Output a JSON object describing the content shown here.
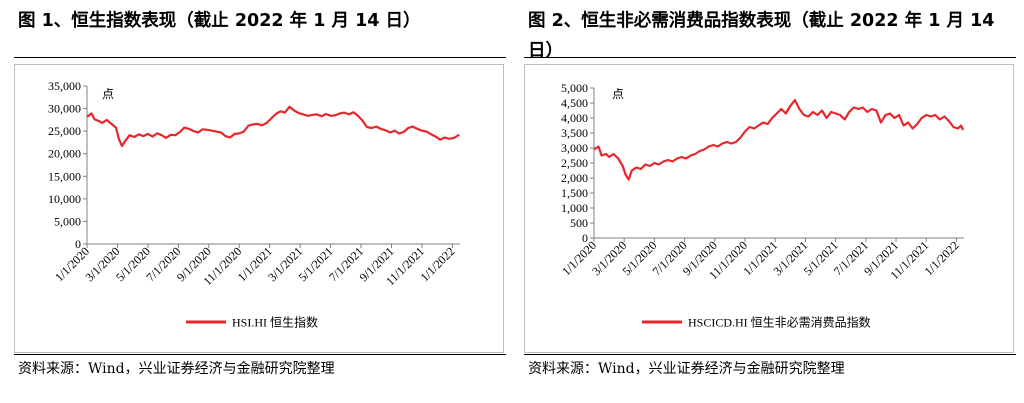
{
  "panels": [
    {
      "title": "图 1、恒生指数表现（截止 2022 年 1 月 14 日）",
      "source": "资料来源：Wind，兴业证券经济与金融研究院整理",
      "chart_data": {
        "type": "line",
        "ylabel": "点",
        "ylim": [
          0,
          35000
        ],
        "yticks": [
          "0",
          "5,000",
          "10,000",
          "15,000",
          "20,000",
          "25,000",
          "30,000",
          "35,000"
        ],
        "ytick_values": [
          0,
          5000,
          10000,
          15000,
          20000,
          25000,
          30000,
          35000
        ],
        "xticks": [
          "1/1/2020",
          "3/1/2020",
          "5/1/2020",
          "7/1/2020",
          "9/1/2020",
          "11/1/2020",
          "1/1/2021",
          "3/1/2021",
          "5/1/2021",
          "7/1/2021",
          "9/1/2021",
          "11/1/2021",
          "1/1/2022"
        ],
        "xtick_values": [
          0,
          2,
          4,
          6,
          8,
          10,
          12,
          14,
          16,
          18,
          20,
          22,
          24
        ],
        "xlim": [
          0,
          24.5
        ],
        "legend_position": "bottom",
        "series": [
          {
            "name": "HSI.HI 恒生指数",
            "color": "#e8262b",
            "x": [
              0,
              0.3,
              0.5,
              0.8,
              1.0,
              1.3,
              1.6,
              1.9,
              2.1,
              2.3,
              2.5,
              2.8,
              3.1,
              3.4,
              3.7,
              4.0,
              4.3,
              4.6,
              4.9,
              5.2,
              5.5,
              5.8,
              6.1,
              6.4,
              6.7,
              7.0,
              7.3,
              7.6,
              7.9,
              8.2,
              8.5,
              8.8,
              9.1,
              9.4,
              9.7,
              10.0,
              10.3,
              10.6,
              10.9,
              11.2,
              11.5,
              11.8,
              12.1,
              12.4,
              12.7,
              13.0,
              13.3,
              13.6,
              13.9,
              14.2,
              14.5,
              14.8,
              15.1,
              15.4,
              15.7,
              16.0,
              16.3,
              16.6,
              16.9,
              17.2,
              17.5,
              17.8,
              18.1,
              18.4,
              18.7,
              19.0,
              19.3,
              19.6,
              19.9,
              20.2,
              20.5,
              20.8,
              21.1,
              21.4,
              21.7,
              22.0,
              22.3,
              22.6,
              22.9,
              23.2,
              23.5,
              23.8,
              24.1,
              24.3,
              24.45
            ],
            "y": [
              28200,
              28900,
              27600,
              27200,
              26800,
              27500,
              26600,
              25800,
              23200,
              21700,
              22800,
              24100,
              23700,
              24300,
              23900,
              24400,
              23800,
              24500,
              24100,
              23500,
              24200,
              24100,
              24800,
              25800,
              25500,
              25000,
              24700,
              25400,
              25300,
              25100,
              24900,
              24700,
              23900,
              23600,
              24400,
              24500,
              24900,
              26200,
              26500,
              26600,
              26300,
              26800,
              27800,
              28800,
              29400,
              29100,
              30400,
              29600,
              29000,
              28700,
              28400,
              28600,
              28700,
              28300,
              28800,
              28400,
              28500,
              28900,
              29100,
              28700,
              29200,
              28400,
              27300,
              25900,
              25700,
              26000,
              25500,
              25200,
              24700,
              25100,
              24500,
              24800,
              25700,
              26000,
              25500,
              25100,
              24900,
              24300,
              23800,
              23100,
              23600,
              23300,
              23500,
              23900,
              24200
            ]
          }
        ]
      }
    },
    {
      "title": "图 2、恒生非必需消费品指数表现（截止 2022 年 1 月 14 日）",
      "source": "资料来源：Wind，兴业证券经济与金融研究院整理",
      "chart_data": {
        "type": "line",
        "ylabel": "点",
        "ylim": [
          0,
          5000
        ],
        "yticks": [
          "0",
          "500",
          "1,000",
          "1,500",
          "2,000",
          "2,500",
          "3,000",
          "3,500",
          "4,000",
          "4,500",
          "5,000"
        ],
        "ytick_values": [
          0,
          500,
          1000,
          1500,
          2000,
          2500,
          3000,
          3500,
          4000,
          4500,
          5000
        ],
        "xticks": [
          "1/1/2020",
          "3/1/2020",
          "5/1/2020",
          "7/1/2020",
          "9/1/2020",
          "11/1/2020",
          "1/1/2021",
          "3/1/2021",
          "5/1/2021",
          "7/1/2021",
          "9/1/2021",
          "11/1/2021",
          "1/1/2022"
        ],
        "xtick_values": [
          0,
          2,
          4,
          6,
          8,
          10,
          12,
          14,
          16,
          18,
          20,
          22,
          24
        ],
        "xlim": [
          0,
          24.5
        ],
        "legend_position": "bottom",
        "series": [
          {
            "name": "HSCICD.HI 恒生非必需消费品指数",
            "color": "#e8262b",
            "x": [
              0,
              0.3,
              0.5,
              0.8,
              1.0,
              1.3,
              1.6,
              1.9,
              2.1,
              2.3,
              2.5,
              2.8,
              3.1,
              3.4,
              3.7,
              4.0,
              4.3,
              4.6,
              4.9,
              5.2,
              5.5,
              5.8,
              6.1,
              6.4,
              6.7,
              7.0,
              7.3,
              7.6,
              7.9,
              8.2,
              8.5,
              8.8,
              9.1,
              9.4,
              9.7,
              10.0,
              10.3,
              10.6,
              10.9,
              11.2,
              11.5,
              11.8,
              12.1,
              12.4,
              12.7,
              13.0,
              13.3,
              13.6,
              13.9,
              14.2,
              14.5,
              14.8,
              15.1,
              15.4,
              15.7,
              16.0,
              16.3,
              16.6,
              16.9,
              17.2,
              17.5,
              17.8,
              18.1,
              18.4,
              18.7,
              19.0,
              19.3,
              19.6,
              19.9,
              20.2,
              20.5,
              20.8,
              21.1,
              21.4,
              21.7,
              22.0,
              22.3,
              22.6,
              22.9,
              23.2,
              23.5,
              23.8,
              24.1,
              24.3,
              24.45
            ],
            "y": [
              2950,
              3050,
              2750,
              2800,
              2700,
              2800,
              2650,
              2400,
              2100,
              1950,
              2250,
              2350,
              2300,
              2450,
              2400,
              2500,
              2450,
              2550,
              2600,
              2550,
              2650,
              2700,
              2650,
              2750,
              2800,
              2900,
              2950,
              3050,
              3100,
              3050,
              3150,
              3200,
              3150,
              3200,
              3350,
              3550,
              3700,
              3650,
              3750,
              3850,
              3800,
              4000,
              4150,
              4300,
              4150,
              4400,
              4600,
              4300,
              4100,
              4050,
              4200,
              4100,
              4250,
              4000,
              4200,
              4150,
              4100,
              3950,
              4200,
              4350,
              4300,
              4350,
              4200,
              4300,
              4250,
              3850,
              4100,
              4150,
              4000,
              4100,
              3750,
              3850,
              3650,
              3800,
              4000,
              4100,
              4050,
              4100,
              3950,
              4050,
              3900,
              3700,
              3650,
              3750,
              3600
            ]
          }
        ]
      }
    }
  ]
}
